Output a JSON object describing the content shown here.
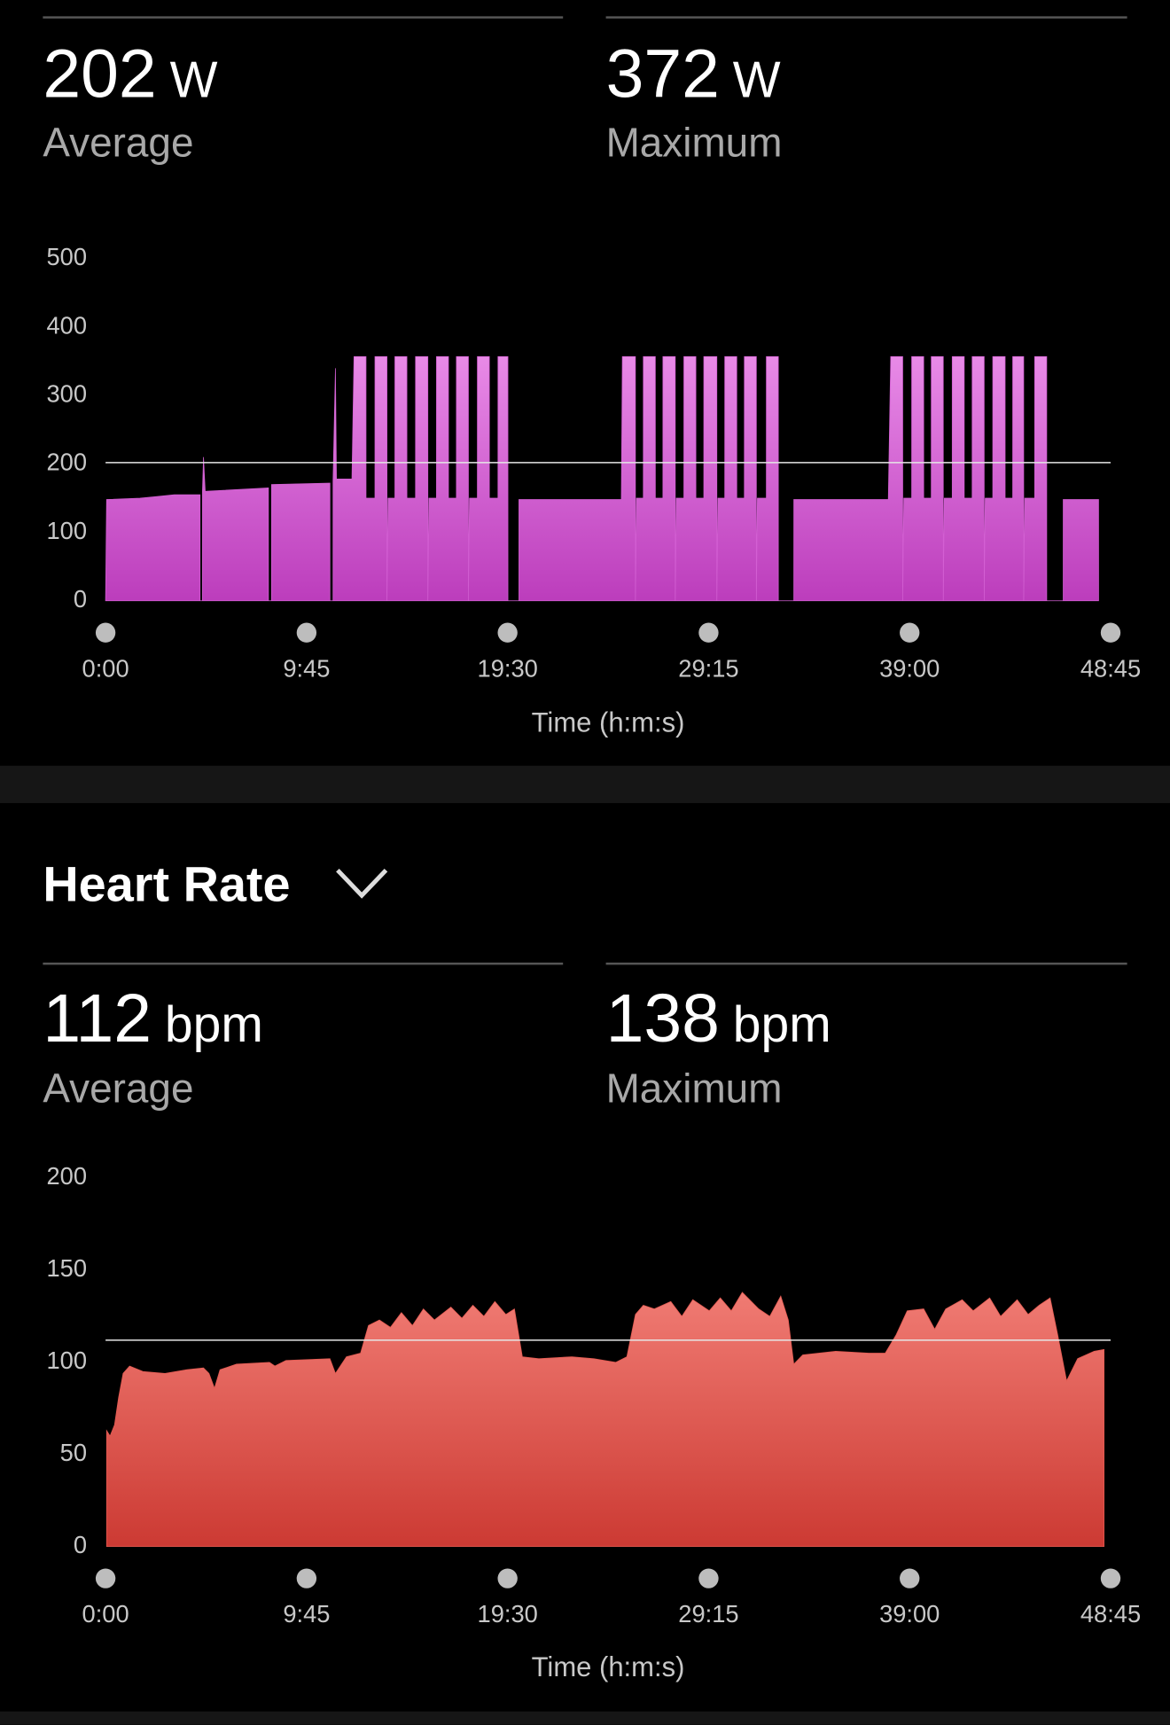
{
  "power_summary": {
    "average": {
      "value": 202,
      "unit": "W",
      "label": "Average"
    },
    "maximum": {
      "value": 372,
      "unit": "W",
      "label": "Maximum"
    }
  },
  "heart_rate": {
    "title": "Heart Rate",
    "average": {
      "value": 112,
      "unit": "bpm",
      "label": "Average"
    },
    "maximum": {
      "value": 138,
      "unit": "bpm",
      "label": "Maximum"
    }
  },
  "chart_data": [
    {
      "type": "area",
      "x_label": "Time (h:m:s)",
      "color": "#d35fd3",
      "gradient": [
        "#e88ae7",
        "#bc3dbc"
      ],
      "xlim": [
        0,
        2925
      ],
      "xticks": [
        {
          "value": 0,
          "label": "0:00"
        },
        {
          "value": 585,
          "label": "9:45"
        },
        {
          "value": 1170,
          "label": "19:30"
        },
        {
          "value": 1755,
          "label": "29:15"
        },
        {
          "value": 2340,
          "label": "39:00"
        },
        {
          "value": 2925,
          "label": "48:45"
        }
      ],
      "ylim": [
        0,
        500
      ],
      "yticks": [
        0,
        100,
        200,
        300,
        400,
        500
      ],
      "x": [
        0,
        3,
        100,
        140,
        200,
        275,
        275,
        282,
        282,
        285,
        290,
        474,
        474,
        483,
        483,
        653,
        653,
        662,
        662,
        669,
        672,
        717,
        723,
        758,
        758,
        784,
        784,
        819,
        819,
        822,
        842,
        842,
        877,
        877,
        902,
        902,
        938,
        938,
        941,
        963,
        963,
        998,
        998,
        1021,
        1021,
        1056,
        1056,
        1059,
        1082,
        1082,
        1117,
        1117,
        1142,
        1142,
        1171,
        1171,
        1203,
        1203,
        1501,
        1504,
        1542,
        1542,
        1545,
        1565,
        1565,
        1600,
        1600,
        1622,
        1622,
        1658,
        1658,
        1661,
        1683,
        1683,
        1718,
        1718,
        1741,
        1741,
        1779,
        1779,
        1782,
        1802,
        1802,
        1837,
        1837,
        1859,
        1859,
        1894,
        1894,
        1897,
        1923,
        1923,
        1958,
        1958,
        2003,
        2003,
        2278,
        2285,
        2320,
        2320,
        2323,
        2346,
        2346,
        2381,
        2381,
        2403,
        2403,
        2438,
        2438,
        2441,
        2464,
        2464,
        2499,
        2499,
        2522,
        2522,
        2557,
        2557,
        2560,
        2582,
        2582,
        2618,
        2618,
        2640,
        2640,
        2672,
        2672,
        2675,
        2704,
        2704,
        2739,
        2739,
        2787,
        2787,
        2890,
        2890
      ],
      "values": [
        0,
        148,
        150,
        152,
        155,
        155,
        0,
        0,
        160,
        210,
        160,
        165,
        0,
        0,
        170,
        172,
        0,
        0,
        175,
        340,
        178,
        178,
        357,
        357,
        150,
        150,
        357,
        357,
        0,
        150,
        150,
        357,
        357,
        150,
        150,
        357,
        357,
        0,
        150,
        150,
        357,
        357,
        150,
        150,
        357,
        357,
        0,
        150,
        150,
        357,
        357,
        150,
        150,
        357,
        357,
        0,
        0,
        148,
        148,
        357,
        357,
        0,
        150,
        150,
        357,
        357,
        150,
        150,
        357,
        357,
        0,
        150,
        150,
        357,
        357,
        150,
        150,
        357,
        357,
        0,
        150,
        150,
        357,
        357,
        150,
        150,
        357,
        357,
        0,
        150,
        150,
        357,
        357,
        0,
        0,
        148,
        148,
        357,
        357,
        0,
        150,
        150,
        357,
        357,
        150,
        150,
        357,
        357,
        0,
        150,
        150,
        357,
        357,
        150,
        150,
        357,
        357,
        0,
        150,
        150,
        357,
        357,
        150,
        150,
        357,
        357,
        0,
        150,
        150,
        357,
        357,
        0,
        0,
        148,
        148,
        0
      ]
    },
    {
      "type": "area",
      "x_label": "Time (h:m:s)",
      "color": "#e35a52",
      "gradient": [
        "#f07b73",
        "#cc3a33"
      ],
      "xlim": [
        0,
        2925
      ],
      "xticks": [
        {
          "value": 0,
          "label": "0:00"
        },
        {
          "value": 585,
          "label": "9:45"
        },
        {
          "value": 1170,
          "label": "19:30"
        },
        {
          "value": 1755,
          "label": "29:15"
        },
        {
          "value": 2340,
          "label": "39:00"
        },
        {
          "value": 2925,
          "label": "48:45"
        }
      ],
      "ylim": [
        0,
        200
      ],
      "yticks": [
        0,
        50,
        100,
        150,
        200
      ],
      "x": [
        3,
        13,
        26,
        38,
        51,
        70,
        109,
        173,
        237,
        285,
        301,
        317,
        333,
        381,
        477,
        493,
        525,
        653,
        669,
        701,
        742,
        765,
        797,
        829,
        861,
        893,
        925,
        957,
        1005,
        1037,
        1069,
        1101,
        1133,
        1165,
        1190,
        1213,
        1261,
        1357,
        1421,
        1485,
        1517,
        1542,
        1565,
        1597,
        1645,
        1677,
        1709,
        1757,
        1789,
        1821,
        1853,
        1901,
        1933,
        1965,
        1987,
        2003,
        2029,
        2125,
        2221,
        2269,
        2301,
        2333,
        2381,
        2413,
        2445,
        2493,
        2525,
        2573,
        2605,
        2653,
        2685,
        2717,
        2749,
        2771,
        2797,
        2829,
        2877,
        2906
      ],
      "values": [
        63,
        60,
        66,
        81,
        94,
        98,
        95,
        94,
        96,
        97,
        94,
        86,
        96,
        99,
        100,
        98,
        101,
        102,
        94,
        103,
        105,
        120,
        123,
        119,
        127,
        120,
        129,
        123,
        130,
        124,
        131,
        125,
        133,
        126,
        129,
        103,
        102,
        103,
        102,
        100,
        103,
        126,
        131,
        129,
        133,
        125,
        134,
        128,
        135,
        128,
        138,
        129,
        125,
        136,
        123,
        99,
        104,
        106,
        105,
        105,
        115,
        128,
        129,
        118,
        129,
        134,
        128,
        135,
        125,
        134,
        126,
        131,
        135,
        115,
        90,
        102,
        106,
        107
      ]
    }
  ]
}
